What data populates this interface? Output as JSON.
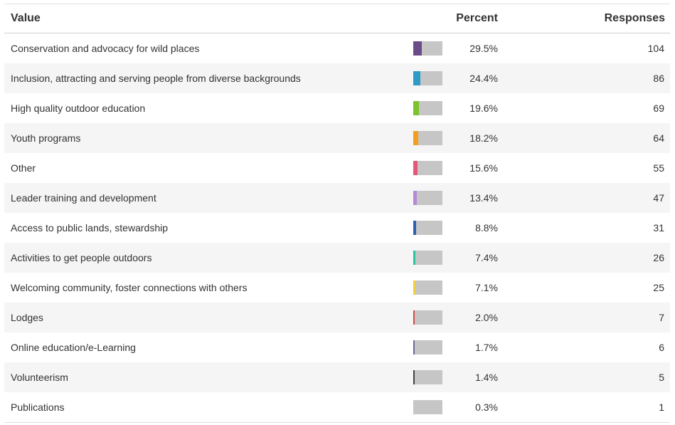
{
  "header": {
    "value_label": "Value",
    "percent_label": "Percent",
    "responses_label": "Responses"
  },
  "chart_data": {
    "type": "table",
    "columns": [
      "Value",
      "Percent",
      "Responses"
    ],
    "rows": [
      {
        "label": "Conservation and advocacy for wild places",
        "percent": 29.5,
        "percent_text": "29.5%",
        "responses": 104,
        "responses_text": "104",
        "color": "#6b4c8a"
      },
      {
        "label": "Inclusion, attracting and serving people from diverse backgrounds",
        "percent": 24.4,
        "percent_text": "24.4%",
        "responses": 86,
        "responses_text": "86",
        "color": "#2e9bc6"
      },
      {
        "label": "High quality outdoor education",
        "percent": 19.6,
        "percent_text": "19.6%",
        "responses": 69,
        "responses_text": "69",
        "color": "#7cc42c"
      },
      {
        "label": "Youth programs",
        "percent": 18.2,
        "percent_text": "18.2%",
        "responses": 64,
        "responses_text": "64",
        "color": "#f59d1d"
      },
      {
        "label": "Other",
        "percent": 15.6,
        "percent_text": "15.6%",
        "responses": 55,
        "responses_text": "55",
        "color": "#e8557a"
      },
      {
        "label": "Leader training and development",
        "percent": 13.4,
        "percent_text": "13.4%",
        "responses": 47,
        "responses_text": "47",
        "color": "#b48ad6"
      },
      {
        "label": "Access to public lands, stewardship",
        "percent": 8.8,
        "percent_text": "8.8%",
        "responses": 31,
        "responses_text": "31",
        "color": "#2f5fb5"
      },
      {
        "label": "Activities to get people outdoors",
        "percent": 7.4,
        "percent_text": "7.4%",
        "responses": 26,
        "responses_text": "26",
        "color": "#2cc4a0"
      },
      {
        "label": "Welcoming community, foster connections with others",
        "percent": 7.1,
        "percent_text": "7.1%",
        "responses": 25,
        "responses_text": "25",
        "color": "#f2cf3c"
      },
      {
        "label": "Lodges",
        "percent": 2.0,
        "percent_text": "2.0%",
        "responses": 7,
        "responses_text": "7",
        "color": "#d44b4b"
      },
      {
        "label": "Online education/e-Learning",
        "percent": 1.7,
        "percent_text": "1.7%",
        "responses": 6,
        "responses_text": "6",
        "color": "#6a6a9e"
      },
      {
        "label": "Volunteerism",
        "percent": 1.4,
        "percent_text": "1.4%",
        "responses": 5,
        "responses_text": "5",
        "color": "#444444"
      },
      {
        "label": "Publications",
        "percent": 0.3,
        "percent_text": "0.3%",
        "responses": 1,
        "responses_text": "1",
        "color": "#c6c6c6"
      }
    ]
  }
}
